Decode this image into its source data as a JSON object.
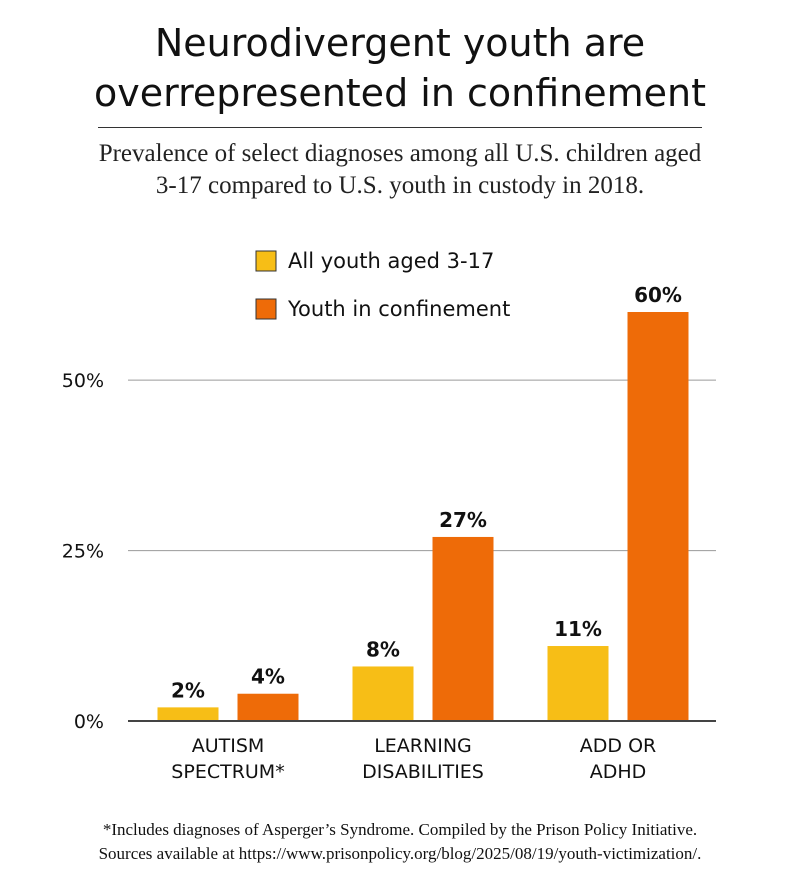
{
  "title_line1": "Neurodivergent youth are",
  "title_line2": "overrepresented in confinement",
  "subtitle_line1": "Prevalence of select diagnoses among all U.S. children aged",
  "subtitle_line2": "3-17 compared to U.S. youth in custody in 2018.",
  "footnote_line1": "*Includes diagnoses of Asperger’s Syndrome. Compiled by the Prison Policy Initiative.",
  "footnote_line2": "Sources available at https://www.prisonpolicy.org/blog/2025/08/19/youth-victimization/.",
  "chart_data": {
    "type": "bar",
    "title": "Neurodivergent youth are overrepresented in confinement",
    "categories": [
      [
        "AUTISM",
        "SPECTRUM*"
      ],
      [
        "LEARNING",
        "DISABILITIES"
      ],
      [
        "ADD OR",
        "ADHD"
      ]
    ],
    "series": [
      {
        "name": "All youth aged 3-17",
        "color": "#F7BE16",
        "values": [
          2,
          8,
          11
        ],
        "labels": [
          "2%",
          "8%",
          "11%"
        ]
      },
      {
        "name": "Youth in confinement",
        "color": "#EE6B08",
        "values": [
          4,
          27,
          60
        ],
        "labels": [
          "4%",
          "27%",
          "60%"
        ]
      }
    ],
    "ylim": [
      0,
      60
    ],
    "yticks": [
      {
        "value": 0,
        "label": "0%"
      },
      {
        "value": 25,
        "label": "25%"
      },
      {
        "value": 50,
        "label": "50%"
      }
    ],
    "grid": true,
    "legend_position": "top-center"
  }
}
